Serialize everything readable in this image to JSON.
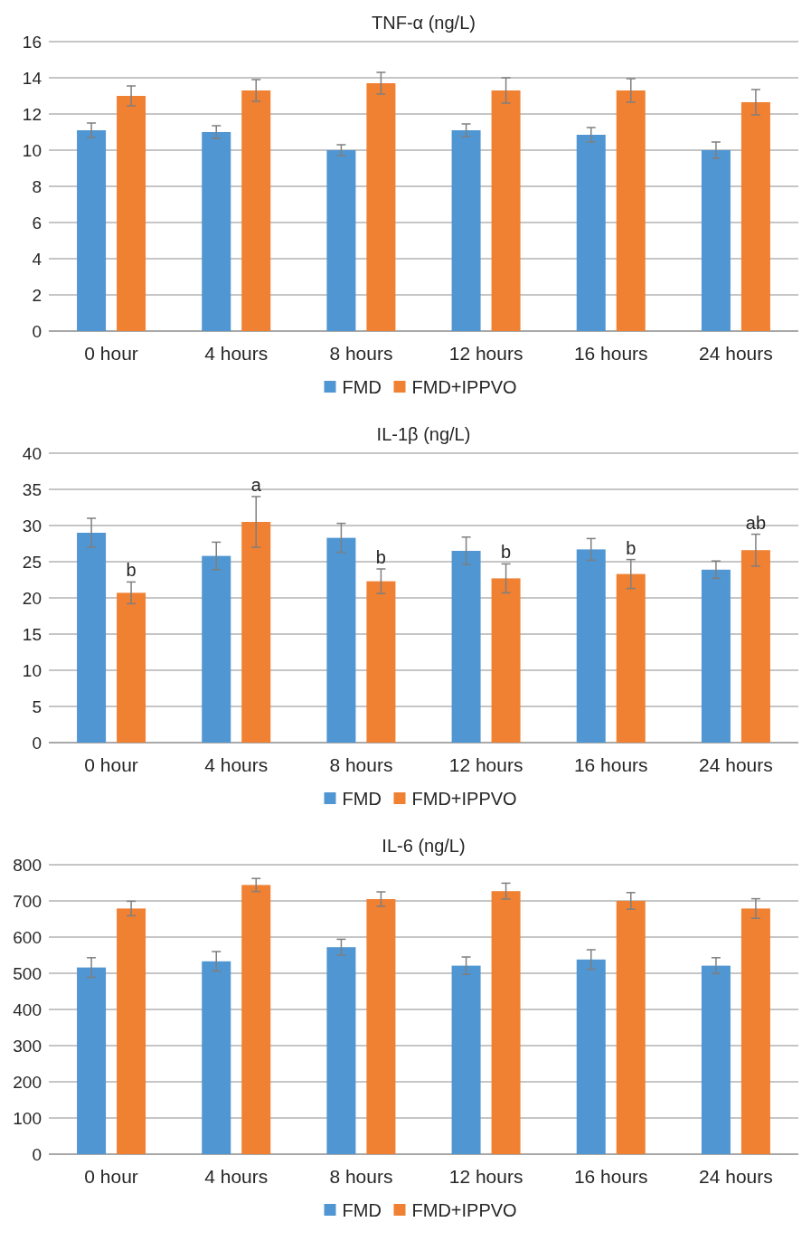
{
  "chart_data": [
    {
      "type": "bar",
      "title": "TNF-α (ng/L)",
      "categories": [
        "0 hour",
        "4 hours",
        "8 hours",
        "12 hours",
        "16 hours",
        "24 hours"
      ],
      "ylim": [
        0,
        16
      ],
      "yticks": [
        0,
        2,
        4,
        6,
        8,
        10,
        12,
        14,
        16
      ],
      "grid": "y",
      "legend": "bottom",
      "series": [
        {
          "name": "FMD",
          "color": "#4f96d2",
          "values": [
            11.1,
            11.0,
            10.0,
            11.1,
            10.85,
            10.0
          ],
          "errors": [
            0.4,
            0.35,
            0.3,
            0.35,
            0.4,
            0.45
          ]
        },
        {
          "name": "FMD+IPPVO",
          "color": "#f08032",
          "values": [
            13.0,
            13.3,
            13.7,
            13.3,
            13.3,
            12.65
          ],
          "errors": [
            0.55,
            0.6,
            0.6,
            0.7,
            0.65,
            0.7
          ]
        }
      ]
    },
    {
      "type": "bar",
      "title": "IL-1β (ng/L)",
      "categories": [
        "0 hour",
        "4 hours",
        "8 hours",
        "12 hours",
        "16 hours",
        "24 hours"
      ],
      "ylim": [
        0,
        40
      ],
      "yticks": [
        0,
        5,
        10,
        15,
        20,
        25,
        30,
        35,
        40
      ],
      "grid": "y",
      "legend": "bottom",
      "series": [
        {
          "name": "FMD",
          "color": "#4f96d2",
          "values": [
            29.0,
            25.8,
            28.3,
            26.5,
            26.7,
            23.9
          ],
          "errors": [
            2,
            1.9,
            2,
            1.9,
            1.5,
            1.2
          ]
        },
        {
          "name": "FMD+IPPVO",
          "color": "#f08032",
          "values": [
            20.7,
            30.5,
            22.3,
            22.7,
            23.3,
            26.6
          ],
          "errors": [
            1.5,
            3.5,
            1.7,
            2.0,
            2,
            2.2
          ]
        }
      ],
      "annotations": [
        "b",
        "a",
        "b",
        "b",
        "b",
        "ab"
      ]
    },
    {
      "type": "bar",
      "title": "IL-6 (ng/L)",
      "categories": [
        "0 hour",
        "4 hours",
        "8 hours",
        "12 hours",
        "16 hours",
        "24 hours"
      ],
      "ylim": [
        0,
        800
      ],
      "yticks": [
        0,
        100,
        200,
        300,
        400,
        500,
        600,
        700,
        800
      ],
      "grid": "y",
      "legend": "bottom",
      "series": [
        {
          "name": "FMD",
          "color": "#4f96d2",
          "values": [
            516,
            533,
            572,
            521,
            538,
            521
          ],
          "errors": [
            27,
            27,
            22,
            24,
            27,
            22
          ]
        },
        {
          "name": "FMD+IPPVO",
          "color": "#f08032",
          "values": [
            679,
            744,
            705,
            727,
            700,
            679
          ],
          "errors": [
            20,
            18,
            20,
            22,
            23,
            27
          ]
        }
      ]
    }
  ]
}
